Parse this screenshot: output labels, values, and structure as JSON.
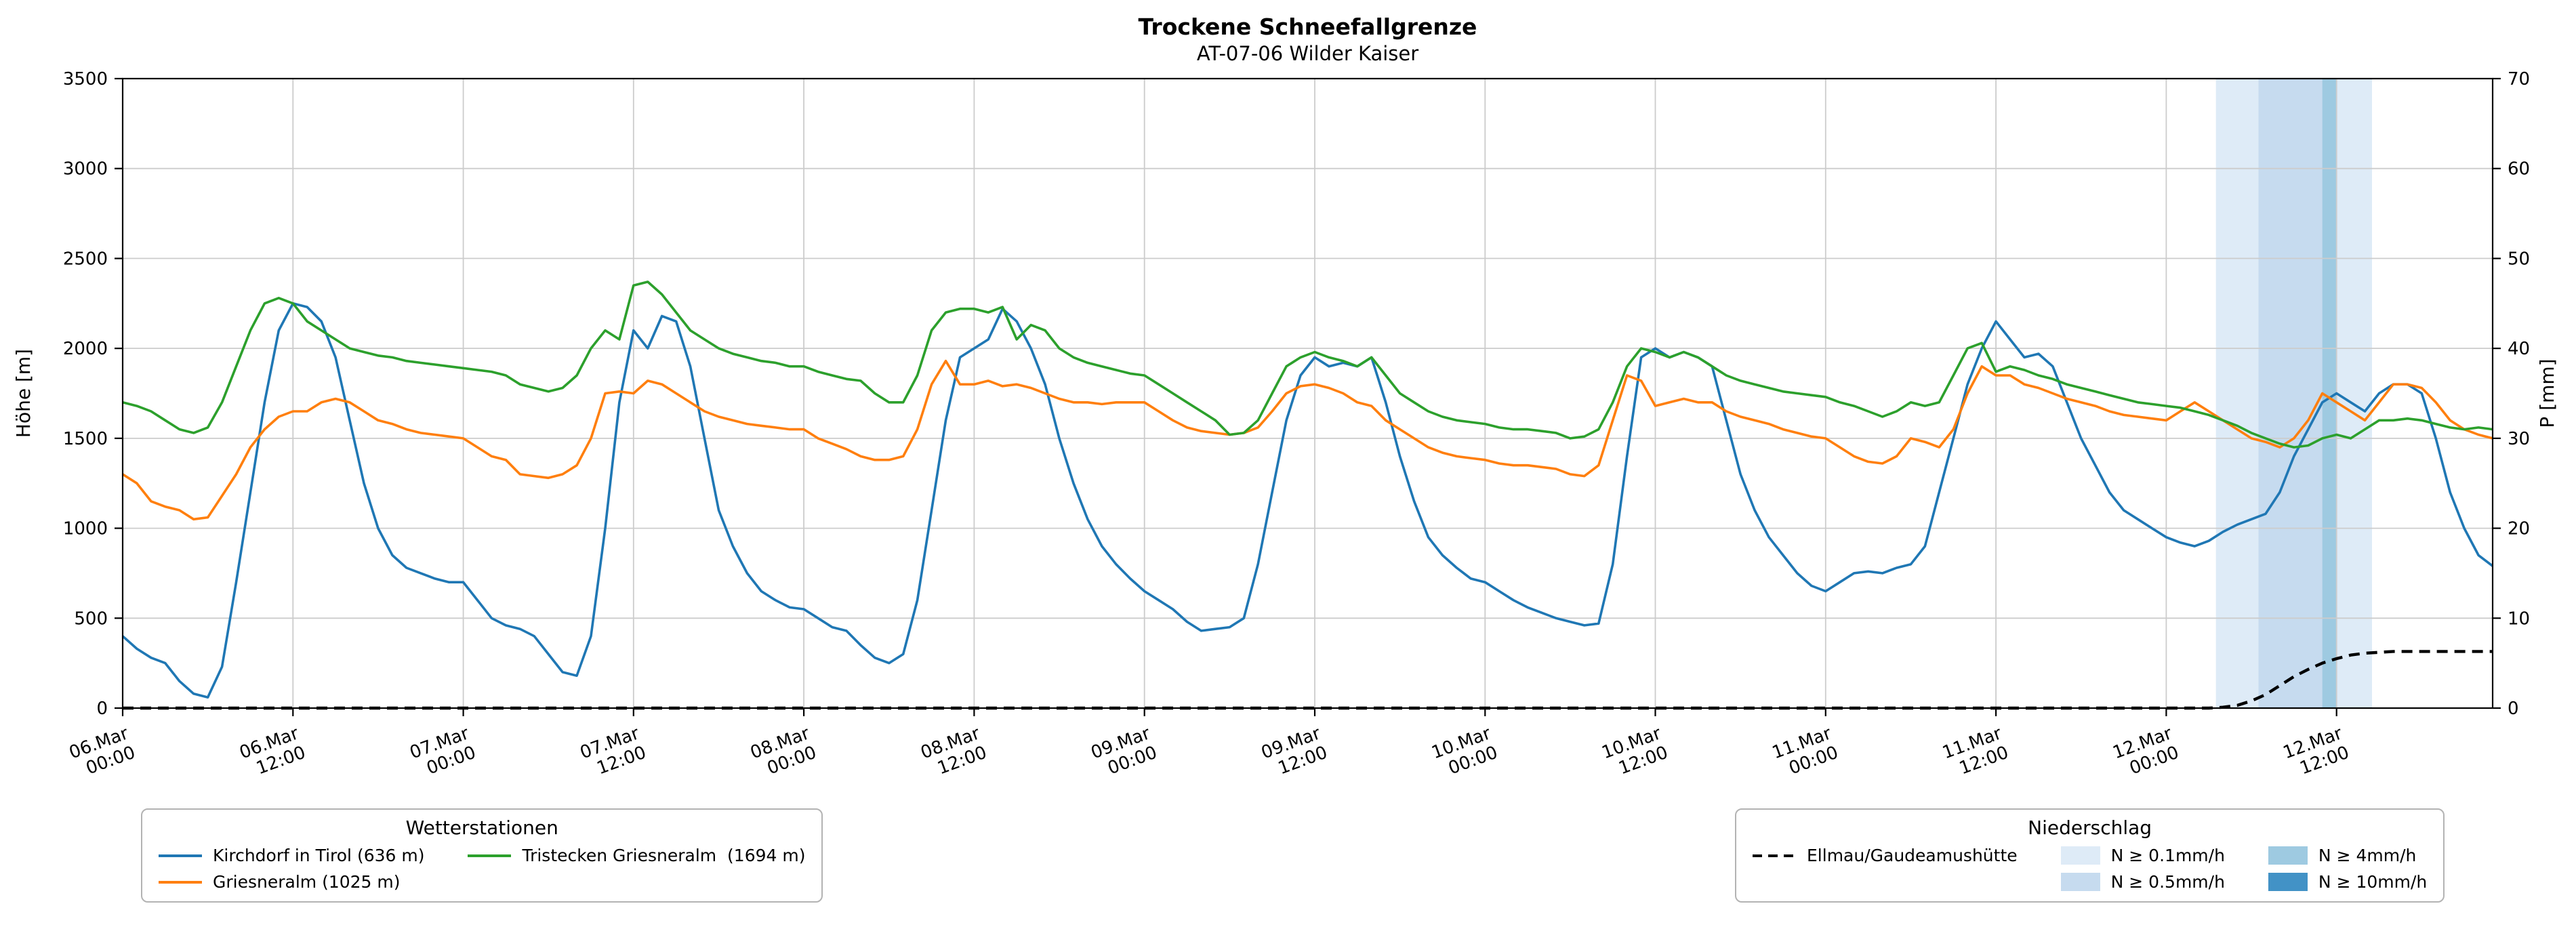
{
  "legends": {
    "stations_title": "Wetterstationen",
    "precip_title": "Niederschlag"
  },
  "chart_data": {
    "type": "line",
    "title": "Trockene Schneefallgrenze",
    "subtitle": "AT-07-06 Wilder Kaiser",
    "ylabel_left": "Höhe [m]",
    "ylabel_right": "P [mm]",
    "ylim_left": [
      0,
      3500
    ],
    "yticks_left": [
      0,
      500,
      1000,
      1500,
      2000,
      2500,
      3000,
      3500
    ],
    "ylim_right": [
      0,
      70
    ],
    "yticks_right": [
      0,
      10,
      20,
      30,
      40,
      50,
      60,
      70
    ],
    "xlim_hours": [
      0,
      167
    ],
    "x_step_hours": 1,
    "grid": true,
    "colors": {
      "grid": "#cccccc",
      "axis": "#000000",
      "background": "#ffffff"
    },
    "xticks": [
      {
        "hour": 0,
        "line1": "06.Mar",
        "line2": "00:00"
      },
      {
        "hour": 12,
        "line1": "06.Mar",
        "line2": "12:00"
      },
      {
        "hour": 24,
        "line1": "07.Mar",
        "line2": "00:00"
      },
      {
        "hour": 36,
        "line1": "07.Mar",
        "line2": "12:00"
      },
      {
        "hour": 48,
        "line1": "08.Mar",
        "line2": "00:00"
      },
      {
        "hour": 60,
        "line1": "08.Mar",
        "line2": "12:00"
      },
      {
        "hour": 72,
        "line1": "09.Mar",
        "line2": "00:00"
      },
      {
        "hour": 84,
        "line1": "09.Mar",
        "line2": "12:00"
      },
      {
        "hour": 96,
        "line1": "10.Mar",
        "line2": "00:00"
      },
      {
        "hour": 108,
        "line1": "10.Mar",
        "line2": "12:00"
      },
      {
        "hour": 120,
        "line1": "11.Mar",
        "line2": "00:00"
      },
      {
        "hour": 132,
        "line1": "11.Mar",
        "line2": "12:00"
      },
      {
        "hour": 144,
        "line1": "12.Mar",
        "line2": "00:00"
      },
      {
        "hour": 156,
        "line1": "12.Mar",
        "line2": "12:00"
      }
    ],
    "series": [
      {
        "id": "kirchdorf",
        "name": "Kirchdorf in Tirol (636 m)",
        "color": "#1f77b4",
        "axis": "left",
        "dashed": false,
        "values": [
          400,
          330,
          280,
          250,
          150,
          80,
          60,
          230,
          700,
          1200,
          1700,
          2100,
          2250,
          2230,
          2150,
          1950,
          1600,
          1250,
          1000,
          850,
          780,
          750,
          720,
          700,
          700,
          600,
          500,
          460,
          440,
          400,
          300,
          200,
          180,
          400,
          1000,
          1700,
          2100,
          2000,
          2180,
          2150,
          1900,
          1500,
          1100,
          900,
          750,
          650,
          600,
          560,
          550,
          500,
          450,
          430,
          350,
          280,
          250,
          300,
          600,
          1100,
          1600,
          1950,
          2000,
          2050,
          2220,
          2150,
          2000,
          1800,
          1500,
          1250,
          1050,
          900,
          800,
          720,
          650,
          600,
          550,
          480,
          430,
          440,
          450,
          500,
          800,
          1200,
          1600,
          1850,
          1950,
          1900,
          1920,
          1900,
          1950,
          1700,
          1400,
          1150,
          950,
          850,
          780,
          720,
          700,
          650,
          600,
          560,
          530,
          500,
          480,
          460,
          470,
          800,
          1400,
          1950,
          2000,
          1950,
          1980,
          1950,
          1900,
          1600,
          1300,
          1100,
          950,
          850,
          750,
          680,
          650,
          700,
          750,
          760,
          750,
          780,
          800,
          900,
          1200,
          1500,
          1800,
          2000,
          2150,
          2050,
          1950,
          1970,
          1900,
          1700,
          1500,
          1350,
          1200,
          1100,
          1050,
          1000,
          950,
          920,
          900,
          930,
          980,
          1020,
          1050,
          1080,
          1200,
          1400,
          1550,
          1700,
          1750,
          1700,
          1650,
          1750,
          1800,
          1800,
          1750,
          1500,
          1200,
          1000,
          850,
          790
        ]
      },
      {
        "id": "griesneralm",
        "name": "Griesneralm (1025 m)",
        "color": "#ff7f0e",
        "axis": "left",
        "dashed": false,
        "values": [
          1300,
          1250,
          1150,
          1120,
          1100,
          1050,
          1060,
          1180,
          1300,
          1450,
          1550,
          1620,
          1650,
          1650,
          1700,
          1720,
          1700,
          1650,
          1600,
          1580,
          1550,
          1530,
          1520,
          1510,
          1500,
          1450,
          1400,
          1380,
          1300,
          1290,
          1280,
          1300,
          1350,
          1500,
          1750,
          1760,
          1750,
          1820,
          1800,
          1750,
          1700,
          1650,
          1620,
          1600,
          1580,
          1570,
          1560,
          1550,
          1550,
          1500,
          1470,
          1440,
          1400,
          1380,
          1380,
          1400,
          1550,
          1800,
          1930,
          1800,
          1800,
          1820,
          1790,
          1800,
          1780,
          1750,
          1720,
          1700,
          1700,
          1690,
          1700,
          1700,
          1700,
          1650,
          1600,
          1560,
          1540,
          1530,
          1520,
          1530,
          1560,
          1650,
          1750,
          1790,
          1800,
          1780,
          1750,
          1700,
          1680,
          1600,
          1550,
          1500,
          1450,
          1420,
          1400,
          1390,
          1380,
          1360,
          1350,
          1350,
          1340,
          1330,
          1300,
          1290,
          1350,
          1600,
          1850,
          1820,
          1680,
          1700,
          1720,
          1700,
          1700,
          1650,
          1620,
          1600,
          1580,
          1550,
          1530,
          1510,
          1500,
          1450,
          1400,
          1370,
          1360,
          1400,
          1500,
          1480,
          1450,
          1550,
          1750,
          1900,
          1850,
          1850,
          1800,
          1780,
          1750,
          1720,
          1700,
          1680,
          1650,
          1630,
          1620,
          1610,
          1600,
          1650,
          1700,
          1650,
          1600,
          1550,
          1500,
          1480,
          1450,
          1500,
          1600,
          1750,
          1700,
          1650,
          1600,
          1700,
          1800,
          1800,
          1780,
          1700,
          1600,
          1550,
          1520,
          1500
        ]
      },
      {
        "id": "tristecken",
        "name": "Tristecken Griesneralm  (1694 m)",
        "color": "#2ca02c",
        "axis": "left",
        "dashed": false,
        "values": [
          1700,
          1680,
          1650,
          1600,
          1550,
          1530,
          1560,
          1700,
          1900,
          2100,
          2250,
          2280,
          2250,
          2150,
          2100,
          2050,
          2000,
          1980,
          1960,
          1950,
          1930,
          1920,
          1910,
          1900,
          1890,
          1880,
          1870,
          1850,
          1800,
          1780,
          1760,
          1780,
          1850,
          2000,
          2100,
          2050,
          2350,
          2370,
          2300,
          2200,
          2100,
          2050,
          2000,
          1970,
          1950,
          1930,
          1920,
          1900,
          1900,
          1870,
          1850,
          1830,
          1820,
          1750,
          1700,
          1700,
          1850,
          2100,
          2200,
          2220,
          2220,
          2200,
          2230,
          2050,
          2130,
          2100,
          2000,
          1950,
          1920,
          1900,
          1880,
          1860,
          1850,
          1800,
          1750,
          1700,
          1650,
          1600,
          1520,
          1530,
          1600,
          1750,
          1900,
          1950,
          1980,
          1950,
          1930,
          1900,
          1950,
          1850,
          1750,
          1700,
          1650,
          1620,
          1600,
          1590,
          1580,
          1560,
          1550,
          1550,
          1540,
          1530,
          1500,
          1510,
          1550,
          1700,
          1900,
          2000,
          1980,
          1950,
          1980,
          1950,
          1900,
          1850,
          1820,
          1800,
          1780,
          1760,
          1750,
          1740,
          1730,
          1700,
          1680,
          1650,
          1620,
          1650,
          1700,
          1680,
          1700,
          1850,
          2000,
          2030,
          1870,
          1900,
          1880,
          1850,
          1830,
          1800,
          1780,
          1760,
          1740,
          1720,
          1700,
          1690,
          1680,
          1670,
          1650,
          1630,
          1600,
          1570,
          1530,
          1500,
          1470,
          1450,
          1460,
          1500,
          1520,
          1500,
          1550,
          1600,
          1600,
          1610,
          1600,
          1580,
          1560,
          1550,
          1560,
          1550
        ]
      },
      {
        "id": "ellmau",
        "name": "Ellmau/Gaudeamushütte",
        "color": "#000000",
        "axis": "right",
        "dashed": true,
        "values": [
          0,
          0,
          0,
          0,
          0,
          0,
          0,
          0,
          0,
          0,
          0,
          0,
          0,
          0,
          0,
          0,
          0,
          0,
          0,
          0,
          0,
          0,
          0,
          0,
          0,
          0,
          0,
          0,
          0,
          0,
          0,
          0,
          0,
          0,
          0,
          0,
          0,
          0,
          0,
          0,
          0,
          0,
          0,
          0,
          0,
          0,
          0,
          0,
          0,
          0,
          0,
          0,
          0,
          0,
          0,
          0,
          0,
          0,
          0,
          0,
          0,
          0,
          0,
          0,
          0,
          0,
          0,
          0,
          0,
          0,
          0,
          0,
          0,
          0,
          0,
          0,
          0,
          0,
          0,
          0,
          0,
          0,
          0,
          0,
          0,
          0,
          0,
          0,
          0,
          0,
          0,
          0,
          0,
          0,
          0,
          0,
          0,
          0,
          0,
          0,
          0,
          0,
          0,
          0,
          0,
          0,
          0,
          0,
          0,
          0,
          0,
          0,
          0,
          0,
          0,
          0,
          0,
          0,
          0,
          0,
          0,
          0,
          0,
          0,
          0,
          0,
          0,
          0,
          0,
          0,
          0,
          0,
          0,
          0,
          0,
          0,
          0,
          0,
          0,
          0,
          0,
          0,
          0,
          0,
          0,
          0,
          0,
          0,
          0.1,
          0.3,
          0.8,
          1.5,
          2.5,
          3.5,
          4.3,
          5.0,
          5.5,
          5.9,
          6.1,
          6.2,
          6.3,
          6.3,
          6.3,
          6.3,
          6.3,
          6.3,
          6.3,
          6.3
        ]
      }
    ],
    "precip_bands": [
      {
        "level": "0.1",
        "label": "N ≥ 0.1mm/h",
        "color": "#deebf7",
        "from_hour": 147.5,
        "to_hour": 158.5
      },
      {
        "level": "0.5",
        "label": "N ≥ 0.5mm/h",
        "color": "#c6dbef",
        "from_hour": 150.5,
        "to_hour": 156.0
      },
      {
        "level": "4",
        "label": "N ≥ 4mm/h",
        "color": "#9ecae1",
        "from_hour": 155.0,
        "to_hour": 156.0
      },
      {
        "level": "10",
        "label": "N ≥ 10mm/h",
        "color": "#4292c6",
        "from_hour": null,
        "to_hour": null
      }
    ]
  }
}
